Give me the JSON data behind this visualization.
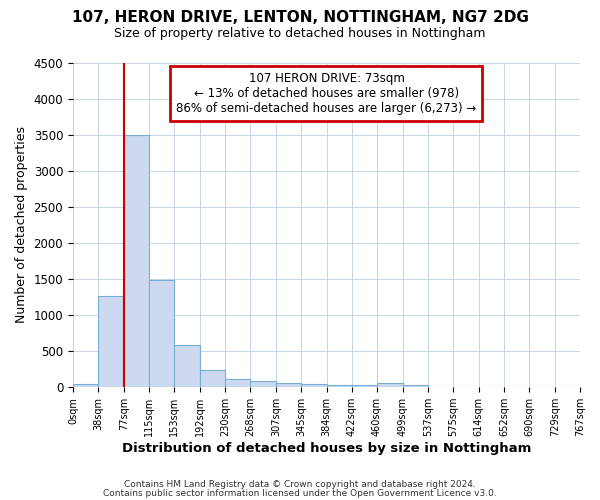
{
  "title1": "107, HERON DRIVE, LENTON, NOTTINGHAM, NG7 2DG",
  "title2": "Size of property relative to detached houses in Nottingham",
  "xlabel": "Distribution of detached houses by size in Nottingham",
  "ylabel": "Number of detached properties",
  "footnote1": "Contains HM Land Registry data © Crown copyright and database right 2024.",
  "footnote2": "Contains public sector information licensed under the Open Government Licence v3.0.",
  "bar_color": "#ccd9ee",
  "bar_edge_color": "#7aadd4",
  "grid_color": "#c8d4e8",
  "annotation_line1": "107 HERON DRIVE: 73sqm",
  "annotation_line2": "← 13% of detached houses are smaller (978)",
  "annotation_line3": "86% of semi-detached houses are larger (6,273) →",
  "annotation_box_color": "#ffffff",
  "annotation_edge_color": "#cc0000",
  "vline_color": "#cc0000",
  "vline_x": 77,
  "bin_edges": [
    0,
    38,
    77,
    115,
    153,
    192,
    230,
    268,
    307,
    345,
    384,
    422,
    460,
    499,
    537,
    575,
    614,
    652,
    690,
    729,
    767
  ],
  "bin_counts": [
    40,
    1270,
    3500,
    1480,
    580,
    240,
    115,
    85,
    60,
    45,
    35,
    35,
    55,
    30,
    5,
    0,
    0,
    0,
    0,
    0
  ],
  "ylim": [
    0,
    4500
  ],
  "yticks": [
    0,
    500,
    1000,
    1500,
    2000,
    2500,
    3000,
    3500,
    4000,
    4500
  ],
  "background_color": "#ffffff",
  "plot_bg_color": "#ffffff"
}
